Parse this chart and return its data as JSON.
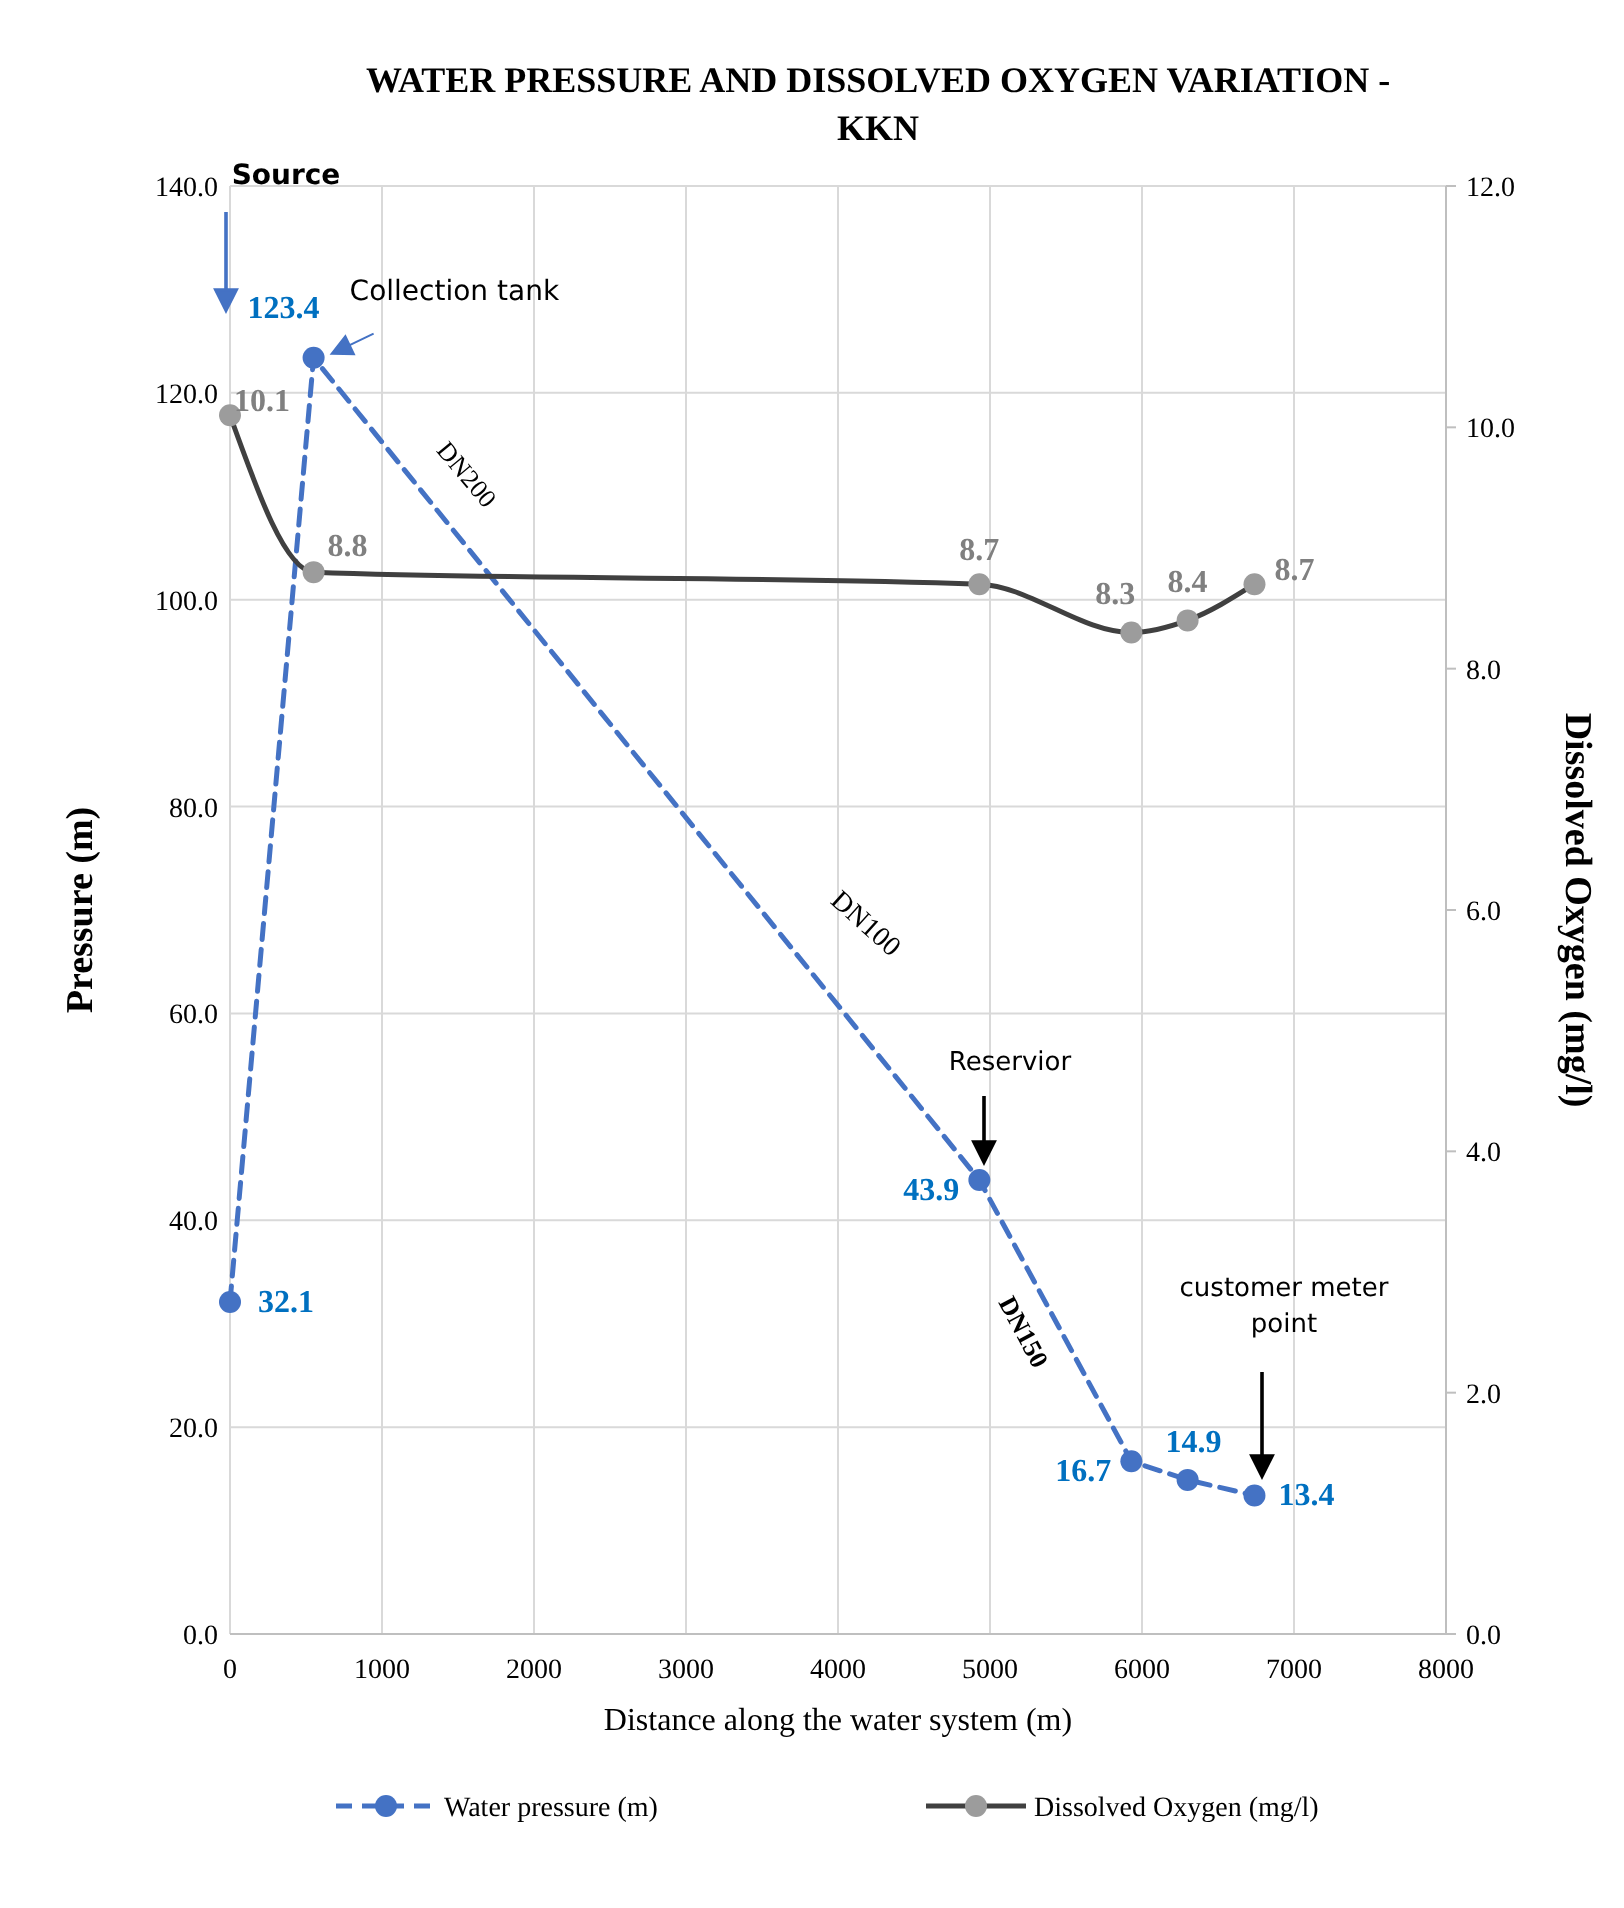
{
  "chart_data": {
    "type": "line",
    "title": "WATER PRESSURE AND DISSOLVED OXYGEN  VARIATION - KKN",
    "xlabel": "Distance along the water system (m)",
    "ylabel": "Pressure (m)",
    "y2label": "Dissolved Oxygen (mg/l)",
    "x": [
      0,
      550,
      4930,
      5930,
      6300,
      6740
    ],
    "series": [
      {
        "name": "Water pressure  (m)",
        "color": "#4472c4",
        "values": [
          32.1,
          123.4,
          43.9,
          16.7,
          14.9,
          13.4
        ],
        "line_style": "dashed",
        "marker": "circle"
      },
      {
        "name": "Dissolved Oxygen (mg/l)",
        "color": "#404040",
        "values": [
          10.1,
          8.8,
          8.7,
          8.3,
          8.4,
          8.7
        ],
        "axis": "y2",
        "line_style": "solid",
        "marker": "circle"
      }
    ],
    "xlim": [
      0,
      8000
    ],
    "xticks": [
      0,
      1000,
      2000,
      3000,
      4000,
      5000,
      6000,
      7000,
      8000
    ],
    "ylim": [
      0,
      140
    ],
    "yticks": [
      {
        "value": 0,
        "label": "0.0"
      },
      {
        "value": 20,
        "label": "20.0"
      },
      {
        "value": 40,
        "label": "40.0"
      },
      {
        "value": 60,
        "label": "60.0"
      },
      {
        "value": 80,
        "label": "80.0"
      },
      {
        "value": 100,
        "label": "100.0"
      },
      {
        "value": 120,
        "label": "120.0"
      },
      {
        "value": 140,
        "label": "140.0"
      }
    ],
    "y2lim": [
      0,
      12
    ],
    "y2ticks": [
      {
        "value": 0,
        "label": "0.0"
      },
      {
        "value": 2,
        "label": "2.0"
      },
      {
        "value": 4,
        "label": "4.0"
      },
      {
        "value": 6,
        "label": "6.0"
      },
      {
        "value": 8,
        "label": "8.0"
      },
      {
        "value": 10,
        "label": "10.0"
      },
      {
        "value": 12,
        "label": "12.0"
      }
    ],
    "annotations": [
      "Source",
      {
        "text": "Collection tank",
        "x": 550,
        "y": 123.4
      },
      "DN200",
      "DN100",
      "Reservior",
      "DN150",
      "customer meter point"
    ],
    "data_labels": true,
    "grid": true,
    "legend": "bottom"
  }
}
